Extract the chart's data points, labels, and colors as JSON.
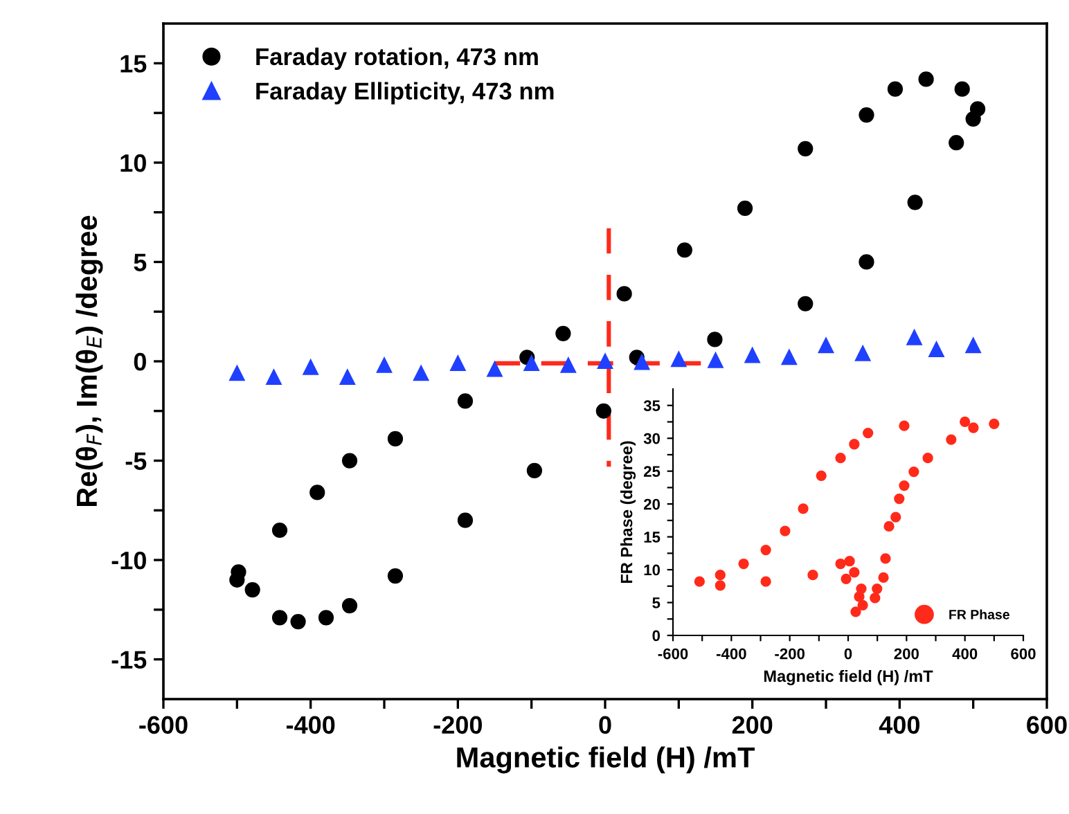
{
  "chart_data": [
    {
      "type": "scatter",
      "xlabel": "Magnetic field (H) /mT",
      "ylabel": "Re(θ$_{F}$), Im(θ$_{E}$) /degree",
      "xlim": [
        -600,
        600
      ],
      "ylim": [
        -17,
        17
      ],
      "xticks": [
        -600,
        {
          "value": -500,
          "label": null
        },
        -400,
        {
          "value": -300,
          "label": null
        },
        -200,
        {
          "value": -100,
          "label": null
        },
        0,
        {
          "value": 100,
          "label": null
        },
        200,
        {
          "value": 300,
          "label": null
        },
        400,
        {
          "value": 500,
          "label": null
        },
        600
      ],
      "yticks": [
        -15,
        {
          "value": -12.5,
          "label": null
        },
        -10,
        {
          "value": -7.5,
          "label": null
        },
        -5,
        {
          "value": -2.5,
          "label": null
        },
        0,
        {
          "value": 2.5,
          "label": null
        },
        5,
        {
          "value": 7.5,
          "label": null
        },
        10,
        {
          "value": 12.5,
          "label": null
        },
        15
      ],
      "legend": "top left",
      "grid": false,
      "series": [
        {
          "name": "Faraday rotation, 473 nm",
          "color": "#000000",
          "marker": "circle",
          "x": [
            500,
            485,
            436,
            394,
            355,
            272,
            190,
            108,
            26,
            -57,
            -106,
            -190,
            -285,
            -347,
            -391,
            -442,
            -498,
            -500,
            -479,
            -442,
            -417,
            -379,
            -347,
            -285,
            -190,
            -96,
            -2,
            43,
            149,
            272,
            355,
            421,
            477,
            506
          ],
          "values": [
            12.2,
            13.7,
            14.2,
            13.7,
            12.4,
            10.7,
            7.7,
            5.6,
            3.4,
            1.4,
            0.2,
            -2.0,
            -3.9,
            -5.0,
            -6.6,
            -8.5,
            -10.6,
            -11.0,
            -11.5,
            -12.9,
            -13.1,
            -12.9,
            -12.3,
            -10.8,
            -8.0,
            -5.5,
            -2.5,
            0.2,
            1.1,
            2.9,
            5.0,
            8.0,
            11.0,
            12.7
          ]
        },
        {
          "name": "Faraday Ellipticity, 473 nm",
          "color": "#2040ff",
          "marker": "triangle",
          "x": [
            500,
            420,
            300,
            200,
            100,
            0,
            -100,
            -200,
            -300,
            -400,
            -500,
            -450,
            -350,
            -250,
            -150,
            -50,
            50,
            150,
            250,
            350,
            450
          ],
          "values": [
            0.8,
            1.2,
            0.8,
            0.3,
            0.1,
            0.0,
            -0.1,
            -0.1,
            -0.2,
            -0.3,
            -0.6,
            -0.8,
            -0.8,
            -0.6,
            -0.4,
            -0.2,
            -0.05,
            0.05,
            0.2,
            0.4,
            0.6
          ]
        },
        {
          "type": "line",
          "color": "#ff2a1a",
          "marker": "none",
          "line_style": "dashed",
          "x": [
            5,
            5
          ],
          "values": [
            6.7,
            -5.3
          ]
        },
        {
          "type": "line",
          "color": "#ff2a1a",
          "marker": "none",
          "line_style": "dashed",
          "x": [
            -150,
            130
          ],
          "values": [
            -0.1,
            -0.1
          ]
        }
      ]
    },
    {
      "type": "scatter",
      "xlabel": "Magnetic field (H) /mT",
      "ylabel": "FR Phase (degree)",
      "xlim": [
        -600,
        600
      ],
      "ylim": [
        0,
        37.5
      ],
      "xticks": [
        -600,
        {
          "value": -500,
          "label": null
        },
        -400,
        {
          "value": -300,
          "label": null
        },
        -200,
        {
          "value": -100,
          "label": null
        },
        0,
        {
          "value": 100,
          "label": null
        },
        200,
        {
          "value": 300,
          "label": null
        },
        400,
        {
          "value": 500,
          "label": null
        },
        600
      ],
      "yticks": [
        0,
        {
          "value": 2.5,
          "label": null
        },
        5,
        {
          "value": 7.5,
          "label": null
        },
        10,
        {
          "value": 12.5,
          "label": null
        },
        15,
        {
          "value": 17.5,
          "label": null
        },
        20,
        {
          "value": 22.5,
          "label": null
        },
        25,
        {
          "value": 27.5,
          "label": null
        },
        30,
        {
          "value": 32.5,
          "label": null
        },
        35
      ],
      "legend": "bottom right",
      "grid": false,
      "series": [
        {
          "name": "FR Phase",
          "color": "#ff2a1a",
          "marker": "circle",
          "x": [
            500,
            400,
            192,
            68,
            21,
            -26,
            -92,
            -154,
            -216,
            -282,
            -358,
            -438,
            -509,
            -438,
            -282,
            -121,
            -26,
            5,
            21,
            -7,
            45,
            38,
            50,
            26,
            92,
            99,
            121,
            128,
            140,
            163,
            175,
            192,
            225,
            273,
            353,
            429
          ],
          "values": [
            32.2,
            32.5,
            31.9,
            30.8,
            29.1,
            27.0,
            24.3,
            19.3,
            15.9,
            13.0,
            10.9,
            9.2,
            8.2,
            7.6,
            8.2,
            9.2,
            10.9,
            11.3,
            9.6,
            8.6,
            7.1,
            5.9,
            4.6,
            3.6,
            5.7,
            7.1,
            8.8,
            11.7,
            16.6,
            18.0,
            20.8,
            22.8,
            24.9,
            27.0,
            29.8,
            31.6
          ]
        }
      ]
    }
  ]
}
